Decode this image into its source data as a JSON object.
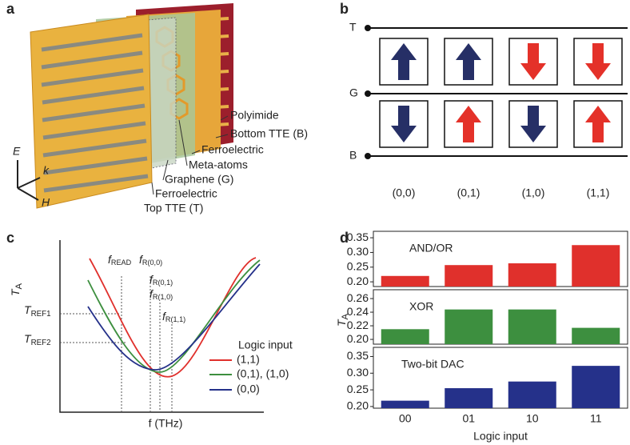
{
  "panel_a": {
    "label": "a",
    "layers": [
      "Polyimide",
      "Bottom TTE (B)",
      "Ferroelectric",
      "Meta-atoms",
      "Graphene (G)",
      "Ferroelectric",
      "Top TTE (T)"
    ],
    "axes": [
      "E",
      "k",
      "H"
    ]
  },
  "panel_b": {
    "label": "b",
    "lines": [
      "T",
      "G",
      "B"
    ],
    "states": [
      "(0,0)",
      "(0,1)",
      "(1,0)",
      "(1,1)"
    ]
  },
  "panel_c": {
    "label": "c",
    "ylabel": {
      "main": "T",
      "sub": "A"
    },
    "xlabel": "f (THz)",
    "refs": [
      {
        "main": "T",
        "sub": "REF1"
      },
      {
        "main": "T",
        "sub": "REF2"
      }
    ],
    "freqs": [
      {
        "main": "f",
        "sub": "READ"
      },
      {
        "main": "f",
        "sub": "R(0,0)"
      },
      {
        "main": "f",
        "sub": "R(0,1)"
      },
      {
        "main": "f",
        "sub": "R(1,0)"
      },
      {
        "main": "f",
        "sub": "R(1,1)"
      }
    ],
    "legend": {
      "title": "Logic input",
      "entries": [
        "(1,1)",
        "(0,1), (1,0)",
        "(0,0)"
      ]
    }
  },
  "panel_d": {
    "label": "d"
  },
  "chart_data": [
    {
      "type": "bar",
      "title": "AND/OR",
      "color": "#e0302c",
      "values": [
        0.22,
        0.257,
        0.263,
        0.325
      ],
      "ylim": [
        0.184,
        0.372
      ],
      "yticks": [
        {
          "value": 0.2,
          "label": "0.20"
        },
        0.25,
        {
          "value": 0.3,
          "label": "0.30"
        },
        0.35
      ]
    },
    {
      "type": "bar",
      "title": "XOR",
      "color": "#3d8f3f",
      "values": [
        0.215,
        0.244,
        0.244,
        0.217
      ],
      "ylim": [
        0.193,
        0.273
      ],
      "yticks": [
        {
          "value": 0.2,
          "label": "0.20"
        },
        0.22,
        0.24,
        0.26
      ],
      "ylabel": {
        "main": "T",
        "sub": "A"
      }
    },
    {
      "type": "bar",
      "title": "Two-bit DAC",
      "color": "#25318a",
      "values": [
        0.2175,
        0.255,
        0.275,
        0.322
      ],
      "ylim": [
        0.195,
        0.3775
      ],
      "yticks": [
        {
          "value": 0.2,
          "label": "0.20"
        },
        0.25,
        {
          "value": 0.3,
          "label": "0.30"
        },
        0.35
      ],
      "categories": [
        "00",
        "01",
        "10",
        "11"
      ],
      "xlabel": "Logic input"
    }
  ]
}
